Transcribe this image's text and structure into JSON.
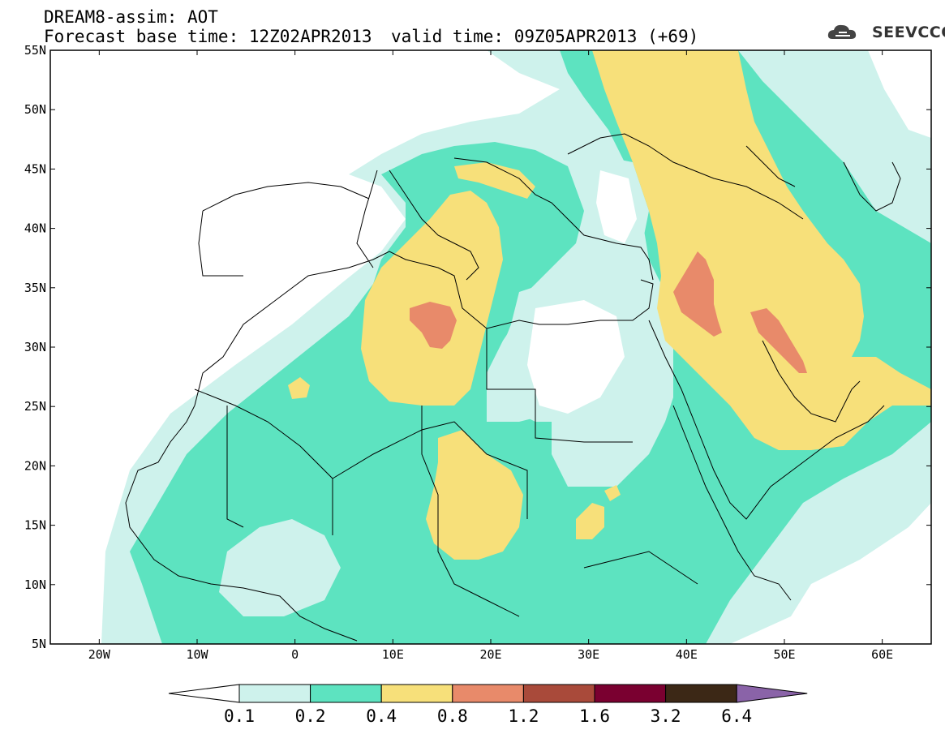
{
  "header": {
    "line1": "DREAM8-assim: AOT",
    "line2": "Forecast base time: 12Z02APR2013",
    "valid": "valid time: 09Z05APR2013 (+69)",
    "logo_text": "SEEVCCC"
  },
  "map": {
    "lat_labels": [
      "55N",
      "50N",
      "45N",
      "40N",
      "35N",
      "30N",
      "25N",
      "20N",
      "15N",
      "10N",
      "5N"
    ],
    "lon_labels": [
      "20W",
      "10W",
      "0",
      "10E",
      "20E",
      "30E",
      "40E",
      "50E",
      "60E"
    ],
    "colors": {
      "c0": "#ffffff",
      "c1": "#cef2ec",
      "c2": "#5de3c0",
      "c3": "#f7e07a",
      "c4": "#e88a6a",
      "c5": "#a94a3a",
      "c6": "#7a0030",
      "c7": "#3c2816",
      "c8": "#8a63a8"
    }
  },
  "colorbar": {
    "ticks": [
      "0.1",
      "0.2",
      "0.4",
      "0.8",
      "1.2",
      "1.6",
      "3.2",
      "6.4"
    ],
    "colors": [
      "#ffffff",
      "#cef2ec",
      "#5de3c0",
      "#f7e07a",
      "#e88a6a",
      "#a94a3a",
      "#7a0030",
      "#3c2816",
      "#8a63a8"
    ]
  }
}
